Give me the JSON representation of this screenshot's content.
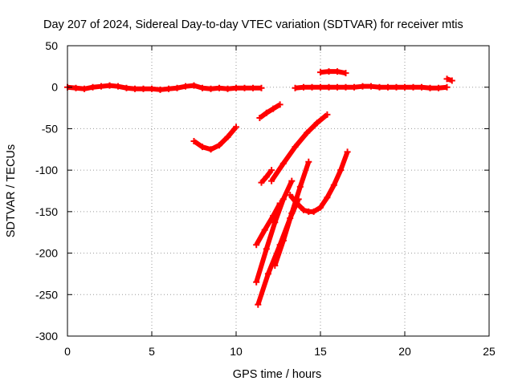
{
  "chart_data": {
    "type": "scatter",
    "title": "Day 207 of 2024, Sidereal Day-to-day VTEC variation (SDTVAR) for receiver mtis",
    "xlabel": "GPS time / hours",
    "ylabel": "SDTVAR / TECUs",
    "xlim": [
      0,
      25
    ],
    "ylim": [
      -300,
      50
    ],
    "xticks": [
      "0",
      "5",
      "10",
      "15",
      "20",
      "25"
    ],
    "yticks": [
      "50",
      "0",
      "-50",
      "-100",
      "-150",
      "-200",
      "-250",
      "-300"
    ],
    "grid": true,
    "marker_color": "#ff0000",
    "tracks": [
      {
        "x": [
          0.0,
          0.5,
          1.0,
          1.5,
          2.0,
          2.5,
          3.0,
          3.5,
          4.0,
          4.5,
          5.0,
          5.5,
          6.0,
          6.5,
          7.0,
          7.5,
          8.0,
          8.5,
          9.0,
          9.5,
          10.0,
          10.5,
          11.0,
          11.5
        ],
        "y": [
          0,
          -1,
          -2,
          0,
          1,
          2,
          1,
          -1,
          -2,
          -2,
          -2,
          -3,
          -2,
          -1,
          1,
          2,
          -1,
          -2,
          -1,
          -2,
          -1,
          -1,
          -1,
          -1
        ]
      },
      {
        "x": [
          13.5,
          14.0,
          14.5,
          15.0,
          15.5,
          16.0,
          16.5,
          17.0,
          17.5,
          18.0,
          18.5,
          19.0,
          19.5,
          20.0,
          20.5,
          21.0,
          21.5,
          22.0,
          22.5
        ],
        "y": [
          -1,
          0,
          0,
          0,
          0,
          0,
          0,
          0,
          1,
          1,
          0,
          0,
          0,
          0,
          0,
          0,
          -1,
          -1,
          0
        ]
      },
      {
        "x": [
          15.0,
          15.5,
          16.0,
          16.5
        ],
        "y": [
          18,
          19,
          19,
          17
        ]
      },
      {
        "x": [
          22.5,
          22.8
        ],
        "y": [
          10,
          8
        ]
      },
      {
        "x": [
          7.5,
          8.0,
          8.5,
          9.0,
          9.5,
          10.0
        ],
        "y": [
          -65,
          -72,
          -75,
          -70,
          -60,
          -48
        ]
      },
      {
        "x": [
          11.4,
          11.8,
          12.2,
          12.6
        ],
        "y": [
          -37,
          -31,
          -26,
          -21
        ]
      },
      {
        "x": [
          11.5,
          11.8,
          12.1
        ],
        "y": [
          -115,
          -108,
          -100
        ]
      },
      {
        "x": [
          12.1,
          12.8,
          13.5,
          14.2,
          14.8,
          15.4
        ],
        "y": [
          -113,
          -92,
          -72,
          -55,
          -43,
          -33
        ]
      },
      {
        "x": [
          11.2,
          11.7,
          12.2,
          12.6
        ],
        "y": [
          -190,
          -172,
          -155,
          -140
        ]
      },
      {
        "x": [
          11.2,
          11.8,
          12.3,
          12.8,
          13.3
        ],
        "y": [
          -235,
          -195,
          -163,
          -135,
          -113
        ]
      },
      {
        "x": [
          12.3,
          12.8,
          13.3,
          13.8,
          14.3
        ],
        "y": [
          -215,
          -185,
          -152,
          -120,
          -90
        ]
      },
      {
        "x": [
          11.3,
          11.9,
          12.6,
          13.2,
          13.7
        ],
        "y": [
          -262,
          -225,
          -190,
          -158,
          -135
        ]
      },
      {
        "x": [
          13.2,
          13.6,
          14.0,
          14.3,
          14.6,
          15.0,
          15.4,
          15.8,
          16.2,
          16.6
        ],
        "y": [
          -130,
          -140,
          -148,
          -150,
          -150,
          -145,
          -133,
          -118,
          -100,
          -78
        ]
      }
    ]
  }
}
